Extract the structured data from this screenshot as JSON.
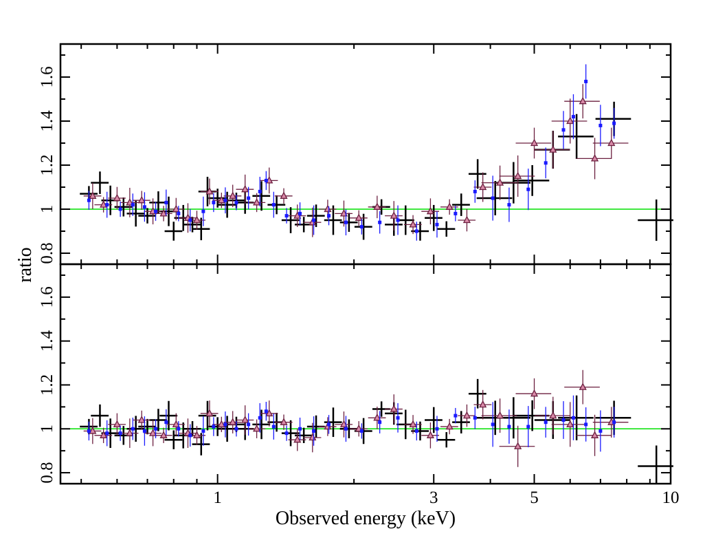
{
  "chart_data": {
    "type": "scatter",
    "xlabel": "Observed energy (keV)",
    "ylabel": "ratio",
    "xscale": "log",
    "xlim": [
      0.45,
      10
    ],
    "x_tick_labels": [
      "1",
      "3",
      "5",
      "10"
    ],
    "x_tick_values": [
      1,
      3,
      5,
      10
    ],
    "panels": [
      {
        "name": "top",
        "ylim": [
          0.75,
          1.75
        ],
        "y_tick_labels": [
          "0.8",
          "1",
          "1.2",
          "1.4",
          "1.6"
        ],
        "y_tick_values": [
          0.8,
          1.0,
          1.2,
          1.4,
          1.6
        ],
        "reference_line": 1.0,
        "series": [
          {
            "name": "black crosses",
            "color": "#000000",
            "marker": "cross",
            "x": [
              0.52,
              0.55,
              0.58,
              0.62,
              0.66,
              0.7,
              0.74,
              0.78,
              0.8,
              0.84,
              0.88,
              0.92,
              0.95,
              1.0,
              1.05,
              1.1,
              1.15,
              1.25,
              1.35,
              1.45,
              1.55,
              1.65,
              1.8,
              1.95,
              2.1,
              2.3,
              2.45,
              2.6,
              2.8,
              3.0,
              3.2,
              3.45,
              3.75,
              4.1,
              4.5,
              4.95,
              5.5,
              6.2,
              7.5,
              9.3
            ],
            "y": [
              1.07,
              1.12,
              1.04,
              1.01,
              0.98,
              0.97,
              1.03,
              0.99,
              0.9,
              0.96,
              0.93,
              0.91,
              1.08,
              1.05,
              1.02,
              1.04,
              1.03,
              1.06,
              1.02,
              0.95,
              0.93,
              0.97,
              0.95,
              0.94,
              0.92,
              1.01,
              0.93,
              0.95,
              0.9,
              0.96,
              0.91,
              1.02,
              1.16,
              1.05,
              1.12,
              1.13,
              1.27,
              1.33,
              1.41,
              0.95
            ]
          },
          {
            "name": "purple triangles",
            "color": "#6b1f3f",
            "marker": "triangle",
            "x": [
              0.53,
              0.56,
              0.6,
              0.64,
              0.68,
              0.72,
              0.76,
              0.81,
              0.86,
              0.9,
              0.96,
              1.02,
              1.08,
              1.15,
              1.22,
              1.3,
              1.4,
              1.5,
              1.62,
              1.75,
              1.9,
              2.05,
              2.25,
              2.45,
              2.7,
              2.95,
              3.25,
              3.55,
              3.85,
              4.2,
              4.6,
              5.0,
              5.5,
              6.0,
              6.4,
              6.8,
              7.4
            ],
            "y": [
              1.06,
              1.02,
              1.05,
              1.03,
              1.04,
              0.99,
              0.98,
              1.0,
              0.96,
              0.95,
              1.08,
              1.04,
              1.06,
              1.09,
              1.03,
              1.13,
              1.06,
              0.97,
              0.94,
              1.0,
              0.98,
              0.96,
              1.01,
              0.97,
              0.93,
              0.99,
              1.01,
              0.95,
              1.1,
              1.12,
              1.15,
              1.3,
              1.27,
              1.4,
              1.49,
              1.23,
              1.3
            ]
          },
          {
            "name": "blue squares",
            "color": "#1a1aff",
            "marker": "square",
            "x": [
              0.52,
              0.57,
              0.61,
              0.65,
              0.69,
              0.73,
              0.77,
              0.82,
              0.87,
              0.93,
              0.98,
              1.04,
              1.1,
              1.17,
              1.24,
              1.28,
              1.33,
              1.42,
              1.52,
              1.63,
              1.76,
              1.92,
              2.08,
              2.28,
              2.5,
              2.75,
              3.05,
              3.35,
              3.7,
              4.05,
              4.4,
              4.85,
              5.3,
              5.8,
              6.1,
              6.5,
              7.0,
              7.5
            ],
            "y": [
              1.04,
              1.02,
              1.0,
              1.02,
              1.01,
              0.99,
              1.03,
              0.98,
              0.95,
              0.99,
              1.03,
              1.04,
              1.03,
              1.05,
              1.08,
              1.13,
              1.02,
              0.97,
              0.98,
              0.95,
              0.97,
              0.94,
              0.92,
              0.94,
              0.95,
              0.9,
              0.93,
              0.98,
              1.08,
              1.05,
              1.02,
              1.09,
              1.21,
              1.36,
              1.42,
              1.58,
              1.38,
              1.39
            ]
          }
        ]
      },
      {
        "name": "bottom",
        "ylim": [
          0.75,
          1.75
        ],
        "y_tick_labels": [
          "0.8",
          "1",
          "1.2",
          "1.4",
          "1.6"
        ],
        "y_tick_values": [
          0.8,
          1.0,
          1.2,
          1.4,
          1.6
        ],
        "reference_line": 1.0,
        "series": [
          {
            "name": "black crosses",
            "color": "#000000",
            "marker": "cross",
            "x": [
              0.52,
              0.55,
              0.58,
              0.62,
              0.66,
              0.7,
              0.74,
              0.78,
              0.8,
              0.84,
              0.88,
              0.92,
              0.95,
              1.0,
              1.05,
              1.1,
              1.15,
              1.25,
              1.35,
              1.45,
              1.55,
              1.65,
              1.8,
              1.95,
              2.1,
              2.3,
              2.45,
              2.6,
              2.8,
              3.0,
              3.2,
              3.45,
              3.75,
              4.1,
              4.5,
              4.95,
              5.5,
              6.2,
              7.5,
              9.3
            ],
            "y": [
              1.01,
              1.06,
              0.98,
              0.97,
              1.0,
              1.01,
              1.04,
              1.06,
              0.95,
              0.97,
              1.0,
              0.93,
              1.06,
              1.01,
              1.0,
              1.02,
              1.0,
              1.02,
              1.03,
              0.98,
              0.97,
              1.01,
              1.03,
              1.0,
              0.99,
              1.09,
              1.07,
              1.02,
              0.99,
              1.04,
              0.95,
              1.03,
              1.16,
              1.05,
              1.05,
              1.06,
              1.04,
              1.05,
              1.05,
              0.83
            ]
          },
          {
            "name": "purple triangles",
            "color": "#6b1f3f",
            "marker": "triangle",
            "x": [
              0.53,
              0.56,
              0.6,
              0.64,
              0.68,
              0.72,
              0.76,
              0.81,
              0.86,
              0.9,
              0.96,
              1.02,
              1.08,
              1.15,
              1.22,
              1.3,
              1.4,
              1.5,
              1.62,
              1.75,
              1.9,
              2.05,
              2.25,
              2.45,
              2.7,
              2.95,
              3.25,
              3.55,
              3.85,
              4.2,
              4.6,
              5.0,
              5.5,
              6.0,
              6.4,
              6.8,
              7.4
            ],
            "y": [
              0.99,
              0.97,
              1.02,
              0.98,
              1.04,
              0.98,
              0.97,
              1.02,
              0.98,
              0.97,
              1.07,
              1.02,
              1.03,
              1.04,
              1.0,
              1.07,
              1.03,
              0.95,
              0.96,
              1.01,
              1.02,
              1.0,
              1.05,
              1.09,
              1.02,
              0.97,
              1.01,
              1.06,
              1.11,
              1.06,
              0.92,
              1.16,
              1.06,
              1.02,
              1.19,
              0.97,
              1.03
            ]
          },
          {
            "name": "blue squares",
            "color": "#1a1aff",
            "marker": "square",
            "x": [
              0.52,
              0.57,
              0.61,
              0.65,
              0.69,
              0.73,
              0.77,
              0.82,
              0.87,
              0.93,
              0.98,
              1.04,
              1.1,
              1.17,
              1.24,
              1.28,
              1.33,
              1.42,
              1.52,
              1.63,
              1.76,
              1.92,
              2.08,
              2.28,
              2.5,
              2.75,
              3.05,
              3.35,
              3.7,
              4.05,
              4.4,
              4.85,
              5.3,
              5.8,
              6.1,
              6.5,
              7.0,
              7.5
            ],
            "y": [
              0.99,
              0.98,
              0.98,
              1.0,
              0.99,
              1.0,
              1.03,
              1.0,
              0.97,
              0.99,
              1.01,
              1.02,
              1.0,
              1.02,
              1.05,
              1.08,
              1.01,
              0.98,
              1.0,
              0.99,
              1.02,
              1.0,
              0.99,
              1.03,
              1.05,
              0.99,
              1.0,
              1.06,
              1.05,
              1.02,
              1.01,
              1.01,
              1.03,
              1.04,
              1.05,
              1.02,
              0.99,
              1.03
            ]
          }
        ]
      }
    ],
    "colors": {
      "reference_line": "#00e000",
      "axes": "#000000"
    }
  }
}
